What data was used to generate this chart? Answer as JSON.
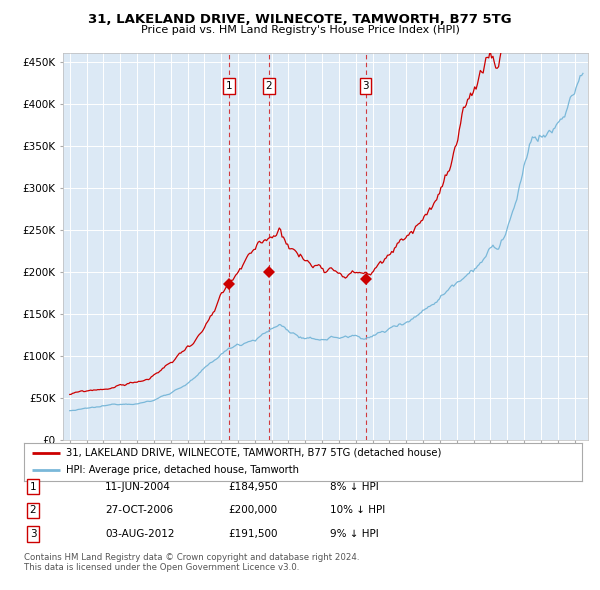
{
  "title": "31, LAKELAND DRIVE, WILNECOTE, TAMWORTH, B77 5TG",
  "subtitle": "Price paid vs. HM Land Registry's House Price Index (HPI)",
  "legend_line1": "31, LAKELAND DRIVE, WILNECOTE, TAMWORTH, B77 5TG (detached house)",
  "legend_line2": "HPI: Average price, detached house, Tamworth",
  "hpi_color": "#7ab8d9",
  "price_color": "#cc0000",
  "vline_color": "#cc0000",
  "plot_bg_color": "#dce9f5",
  "transactions": [
    {
      "label": "1",
      "date": "11-JUN-2004",
      "price": 184950,
      "pct": "8% ↓ HPI",
      "year": 2004.45
    },
    {
      "label": "2",
      "date": "27-OCT-2006",
      "price": 200000,
      "pct": "10% ↓ HPI",
      "year": 2006.83
    },
    {
      "label": "3",
      "date": "03-AUG-2012",
      "price": 191500,
      "pct": "9% ↓ HPI",
      "year": 2012.58
    }
  ],
  "yticks": [
    0,
    50000,
    100000,
    150000,
    200000,
    250000,
    300000,
    350000,
    400000,
    450000
  ],
  "ylabels": [
    "£0",
    "£50K",
    "£100K",
    "£150K",
    "£200K",
    "£250K",
    "£300K",
    "£350K",
    "£400K",
    "£450K"
  ],
  "ymin": 0,
  "ymax": 460000,
  "xmin": 1994.6,
  "xmax": 2025.8,
  "footer_line1": "Contains HM Land Registry data © Crown copyright and database right 2024.",
  "footer_line2": "This data is licensed under the Open Government Licence v3.0."
}
